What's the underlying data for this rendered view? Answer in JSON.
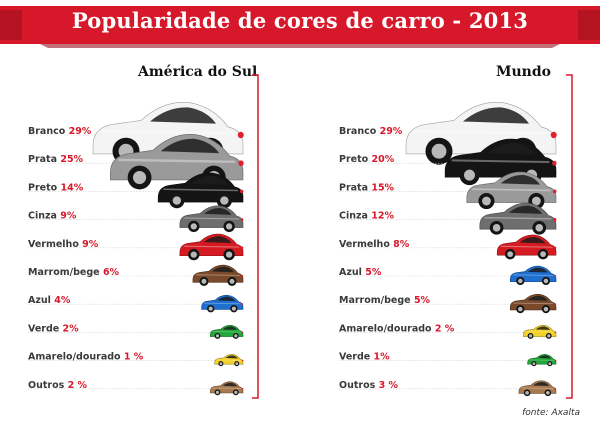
{
  "title": "Popularidade de cores de carro - 2013",
  "source": "fonte: Axalta",
  "colors": {
    "accent": "#d7182a",
    "banner_dark": "#9e1020"
  },
  "chart_data": [
    {
      "type": "bar",
      "title": "América do Sul",
      "categories": [
        "Branco",
        "Prata",
        "Preto",
        "Cinza",
        "Vermelho",
        "Marrom/bege",
        "Azul",
        "Verde",
        "Amarelo/dourado",
        "Outros"
      ],
      "values": [
        29,
        25,
        14,
        9,
        9,
        6,
        4,
        2,
        1,
        2
      ],
      "value_labels": [
        "29%",
        "25%",
        "14%",
        "9%",
        "9%",
        "6%",
        "4%",
        "2%",
        "1 %",
        "2 %"
      ],
      "car_colors": [
        "#f4f4f4",
        "#9a9a9a",
        "#141414",
        "#6e6e6e",
        "#d61a22",
        "#7a4a2a",
        "#1f6fd0",
        "#22a83a",
        "#f2d22a",
        "#a87a50"
      ]
    },
    {
      "type": "bar",
      "title": "Mundo",
      "categories": [
        "Branco",
        "Preto",
        "Prata",
        "Cinza",
        "Vermelho",
        "Azul",
        "Marrom/bege",
        "Amarelo/dourado",
        "Verde",
        "Outros"
      ],
      "values": [
        29,
        20,
        15,
        12,
        8,
        5,
        5,
        2,
        1,
        3
      ],
      "value_labels": [
        "29%",
        "20%",
        "15%",
        "12%",
        "8%",
        "5%",
        "5%",
        "2 %",
        "1%",
        "3 %"
      ],
      "car_colors": [
        "#f4f4f4",
        "#141414",
        "#9a9a9a",
        "#6e6e6e",
        "#d61a22",
        "#1f6fd0",
        "#7a4a2a",
        "#f2d22a",
        "#22a83a",
        "#a87a50"
      ]
    }
  ]
}
